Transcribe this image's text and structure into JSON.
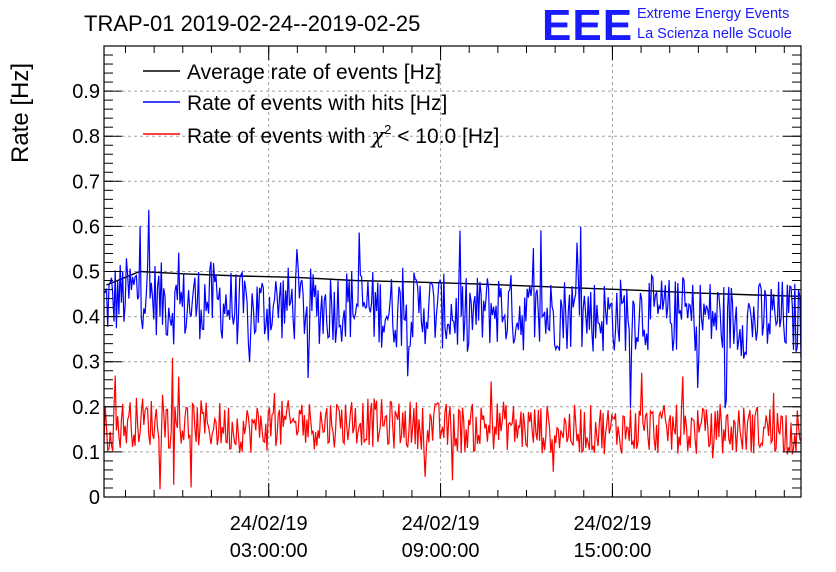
{
  "chart_data": {
    "type": "line",
    "title": "TRAP-01 2019-02-24--2019-02-25",
    "ylabel": "Rate [Hz]",
    "xlabel": "",
    "ylim": [
      0,
      1.0
    ],
    "grid": true,
    "legend_placement": "top-left",
    "x_start": "2019-02-23 21:15",
    "x_end": "2019-02-24 21:35",
    "x_tick_labels": [
      {
        "date": "24/02/19",
        "time": "03:00:00"
      },
      {
        "date": "24/02/19",
        "time": "09:00:00"
      },
      {
        "date": "24/02/19",
        "time": "15:00:00"
      }
    ],
    "y_tick_labels": [
      "0",
      "0.1",
      "0.2",
      "0.3",
      "0.4",
      "0.5",
      "0.6",
      "0.7",
      "0.8",
      "0.9"
    ],
    "series": [
      {
        "name": "Average rate of events [Hz]",
        "color": "#000000",
        "x": [
          "21:20",
          "22:30",
          "00:00",
          "02:00",
          "04:00",
          "06:00",
          "08:00",
          "10:00",
          "12:00",
          "14:00",
          "16:00",
          "18:00",
          "20:00",
          "21:30"
        ],
        "values": [
          0.47,
          0.5,
          0.495,
          0.49,
          0.487,
          0.48,
          0.477,
          0.473,
          0.468,
          0.463,
          0.458,
          0.452,
          0.448,
          0.445
        ]
      },
      {
        "name": "Rate of events with hits [Hz]",
        "color": "#0000ff",
        "x": [
          "21:15",
          "22:30",
          "23:45",
          "01:00",
          "02:15",
          "03:30",
          "04:45",
          "06:00",
          "07:15",
          "08:30",
          "09:45",
          "11:00",
          "12:15",
          "13:30",
          "14:45",
          "16:00",
          "17:15",
          "18:30",
          "19:45",
          "21:00",
          "21:35"
        ],
        "values": [
          0.43,
          0.46,
          0.42,
          0.44,
          0.41,
          0.43,
          0.42,
          0.43,
          0.41,
          0.42,
          0.4,
          0.42,
          0.4,
          0.41,
          0.4,
          0.41,
          0.4,
          0.4,
          0.39,
          0.4,
          0.39
        ]
      },
      {
        "name": "Rate of events with χ² < 10.0 [Hz]",
        "color": "#ff0000",
        "x": [
          "21:15",
          "22:30",
          "23:45",
          "01:00",
          "02:15",
          "03:30",
          "04:45",
          "06:00",
          "07:15",
          "08:30",
          "09:45",
          "11:00",
          "12:15",
          "13:30",
          "14:45",
          "16:00",
          "17:15",
          "18:30",
          "19:45",
          "21:00",
          "21:35"
        ],
        "values": [
          0.15,
          0.17,
          0.16,
          0.16,
          0.15,
          0.16,
          0.16,
          0.17,
          0.16,
          0.16,
          0.15,
          0.16,
          0.15,
          0.15,
          0.15,
          0.15,
          0.15,
          0.14,
          0.15,
          0.15,
          0.14
        ]
      }
    ]
  },
  "logo": {
    "letters": "EEE",
    "line1": "Extreme Energy Events",
    "line2": "La Scienza nelle Scuole"
  },
  "legend_chi": {
    "prefix": "Rate of events with ",
    "symbol": "χ",
    "superscript": "2",
    "suffix": " < 10.0 [Hz]"
  },
  "colors": {
    "average": "#000000",
    "hits": "#0000ff",
    "chi2": "#ff0000",
    "logo": "#1a1aff",
    "grid": "#a0a0a0"
  }
}
